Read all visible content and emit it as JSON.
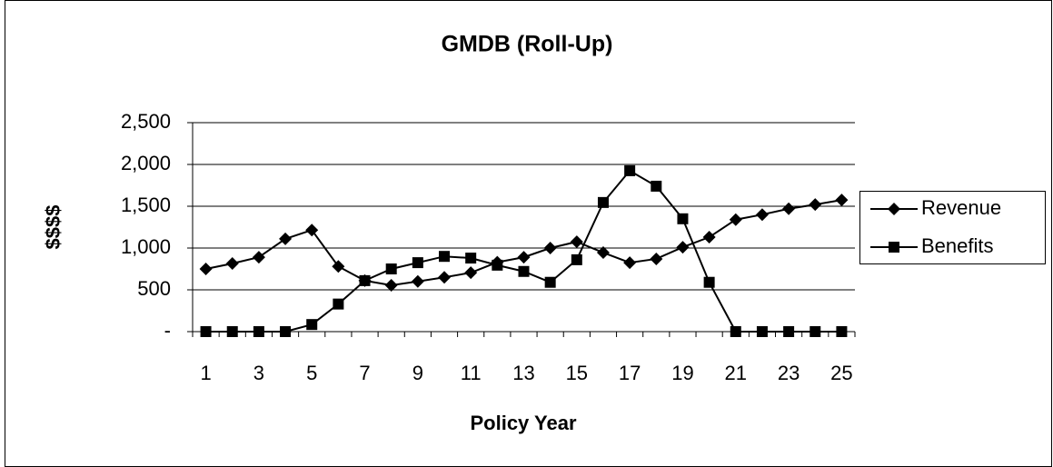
{
  "chart_data": {
    "type": "line",
    "title": "GMDB (Roll-Up)",
    "x_label": "Policy Year",
    "y_label": "$$$$",
    "categories": [
      1,
      null,
      3,
      null,
      5,
      null,
      7,
      null,
      9,
      null,
      11,
      null,
      13,
      null,
      15,
      null,
      17,
      null,
      19,
      null,
      21,
      null,
      23,
      null,
      25
    ],
    "series": [
      {
        "name": "Revenue",
        "color": "#000000",
        "marker": "diamond",
        "values": [
          750,
          815,
          890,
          1110,
          1215,
          780,
          610,
          555,
          600,
          650,
          705,
          830,
          890,
          1000,
          1075,
          945,
          825,
          870,
          1010,
          1130,
          1340,
          1400,
          1470,
          1520,
          1575
        ]
      },
      {
        "name": "Benefits",
        "color": "#000000",
        "marker": "square",
        "values": [
          0,
          0,
          0,
          0,
          85,
          330,
          610,
          750,
          825,
          900,
          880,
          795,
          720,
          590,
          860,
          1545,
          1925,
          1740,
          1350,
          590,
          0,
          0,
          0,
          0,
          0
        ]
      }
    ],
    "ylim": [
      0,
      2500
    ],
    "yticks": [
      {
        "value": 0,
        "label": "-"
      },
      500,
      {
        "value": 1000,
        "label": "1,000"
      },
      {
        "value": 1500,
        "label": "1,500"
      },
      {
        "value": 2000,
        "label": "2,000"
      },
      {
        "value": 2500,
        "label": "2,500"
      }
    ],
    "grid": true,
    "legend": "right"
  }
}
